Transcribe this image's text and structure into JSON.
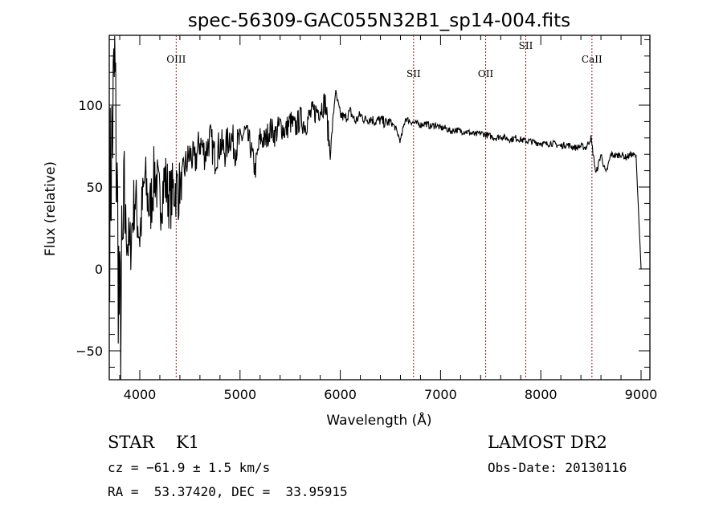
{
  "chart_data": {
    "type": "line",
    "title": "spec-56309-GAC055N32B1_sp14-004.fits",
    "xlabel": "Wavelength (Å)",
    "ylabel": "Flux (relative)",
    "xlim": [
      3700,
      9090
    ],
    "ylim": [
      -68,
      143
    ],
    "x_ticks": [
      4000,
      5000,
      6000,
      7000,
      8000,
      9000
    ],
    "y_ticks": [
      -50,
      0,
      50,
      100
    ],
    "grid": false,
    "lines": [
      {
        "label": "OIII",
        "x": 4363,
        "level": "high"
      },
      {
        "label": "SII",
        "x": 6731,
        "level": "low"
      },
      {
        "label": "OII",
        "x": 7450,
        "level": "low"
      },
      {
        "label": "SII",
        "x": 7850,
        "level": "top"
      },
      {
        "label": "CaII",
        "x": 8510,
        "level": "high"
      }
    ],
    "line_color": "#8b1a1a",
    "series": [
      {
        "name": "spectrum",
        "x_start": 3700,
        "x_step": 50,
        "values": [
          40,
          120,
          -40,
          30,
          10,
          45,
          20,
          55,
          35,
          60,
          40,
          55,
          42,
          50,
          48,
          62,
          70,
          65,
          78,
          70,
          80,
          68,
          76,
          72,
          82,
          74,
          78,
          84,
          76,
          60,
          80,
          78,
          86,
          82,
          88,
          84,
          90,
          86,
          92,
          88,
          94,
          96,
          98,
          102,
          70,
          108,
          94,
          92,
          96,
          90,
          94,
          91,
          92,
          90,
          91,
          89,
          90,
          86,
          78,
          92,
          90,
          89,
          88,
          89,
          87,
          88,
          86,
          86,
          84,
          85,
          84,
          84,
          83,
          82,
          83,
          82,
          81,
          80,
          81,
          80,
          79,
          80,
          79,
          78,
          78,
          77,
          77,
          76,
          77,
          76,
          75,
          76,
          75,
          74,
          75,
          74,
          80,
          58,
          70,
          58,
          70,
          69,
          70,
          68,
          70,
          69,
          0
        ]
      }
    ]
  },
  "info": {
    "class": "STAR",
    "subclass": "K1",
    "cz": "cz = −61.9 ± 1.5 km/s",
    "coords": "RA =  53.37420, DEC =  33.95915",
    "survey": "LAMOST DR2",
    "obs_date": "Obs-Date: 20130116"
  }
}
